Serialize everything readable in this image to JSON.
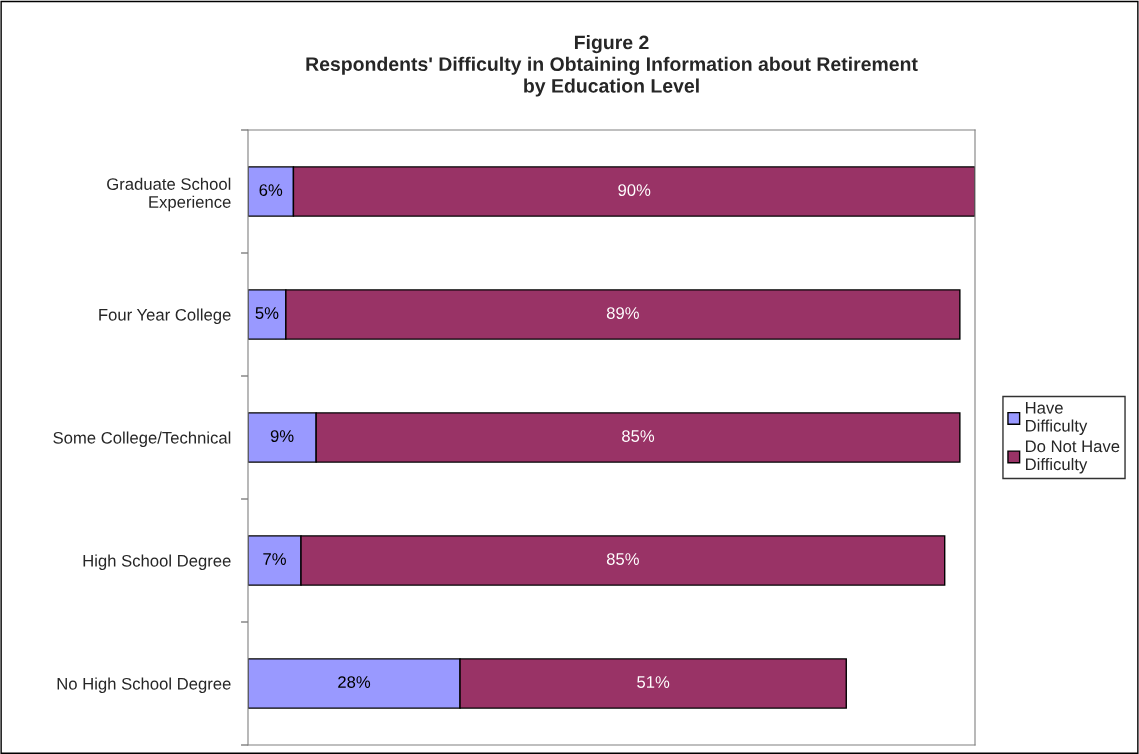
{
  "chart_data": {
    "type": "bar",
    "orientation": "horizontal",
    "stacked": true,
    "title": "Figure 2\nRespondents' Difficulty in Obtaining Information about Retirement\nby Education Level",
    "categories": [
      "Graduate School\nExperience",
      "Four Year College",
      "Some College/Technical",
      "High School Degree",
      "No High School Degree"
    ],
    "series": [
      {
        "name": "Have\nDifficulty",
        "color": "#9999ff",
        "values": [
          6,
          5,
          9,
          7,
          28
        ],
        "value_labels": [
          "6%",
          "5%",
          "9%",
          "7%",
          "28%"
        ]
      },
      {
        "name": "Do Not Have\nDifficulty",
        "color": "#993366",
        "values": [
          90,
          89,
          85,
          85,
          51
        ],
        "value_labels": [
          "90%",
          "89%",
          "85%",
          "85%",
          "51%"
        ]
      }
    ],
    "legend": "right",
    "grid": false
  }
}
